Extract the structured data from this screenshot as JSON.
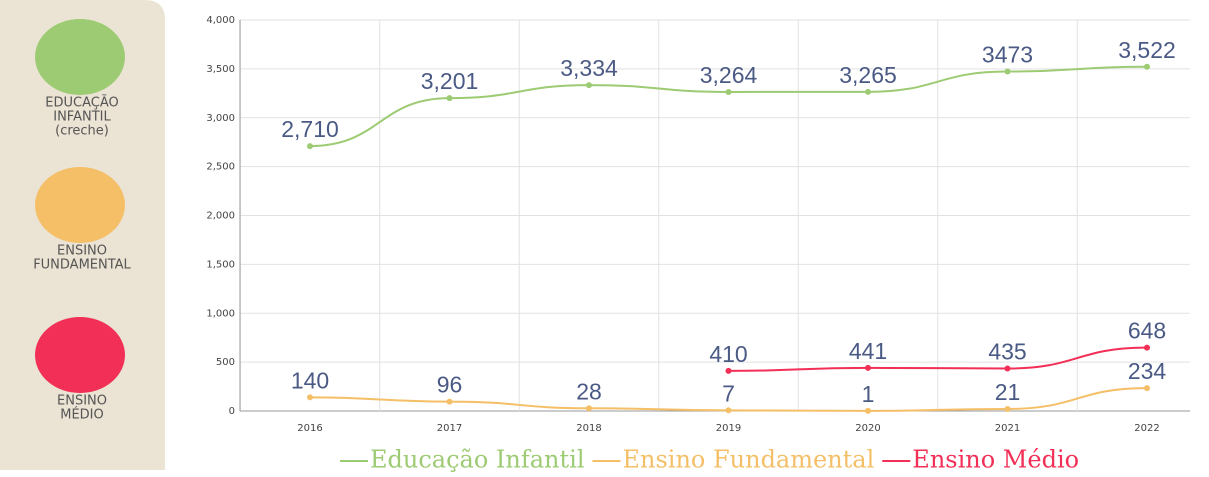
{
  "sidebar": [
    {
      "lines": [
        "EDUCAÇÃO",
        "INFANTIL",
        "(creche)"
      ],
      "color": "#9dcb73"
    },
    {
      "lines": [
        "ENSINO",
        "FUNDAMENTAL"
      ],
      "color": "#f4bf66"
    },
    {
      "lines": [
        "ENSINO",
        "MÉDIO"
      ],
      "color": "#f22f56"
    }
  ],
  "chart_data": {
    "type": "line",
    "categories": [
      "2016",
      "2017",
      "2018",
      "2019",
      "2020",
      "2021",
      "2022"
    ],
    "series": [
      {
        "name": "Educação Infantil",
        "color": "#9dcb73",
        "values": [
          2710,
          3201,
          3334,
          3264,
          3265,
          3473,
          3522
        ],
        "value_labels": [
          "2,710",
          "3,201",
          "3,334",
          "3,264",
          "3,265",
          "3473",
          "3,522"
        ]
      },
      {
        "name": "Ensino Fundamental",
        "color": "#f4bf66",
        "values": [
          140,
          96,
          28,
          7,
          1,
          21,
          234
        ]
      },
      {
        "name": "Ensino Médio",
        "color": "#f22f56",
        "values": [
          null,
          null,
          null,
          410,
          441,
          435,
          648
        ]
      }
    ],
    "ylim": [
      0,
      4000
    ],
    "yticks": [
      0,
      500,
      {
        "value": 1000,
        "label": "1,000"
      },
      {
        "value": 1500,
        "label": "1,500"
      },
      {
        "value": 2000,
        "label": "2,000"
      },
      {
        "value": 2500,
        "label": "2,500"
      },
      {
        "value": 3000,
        "label": "3,000"
      },
      {
        "value": 3500,
        "label": "3,500"
      },
      {
        "value": 4000,
        "label": "4,000"
      }
    ],
    "grid": true,
    "legend": "bottom"
  }
}
